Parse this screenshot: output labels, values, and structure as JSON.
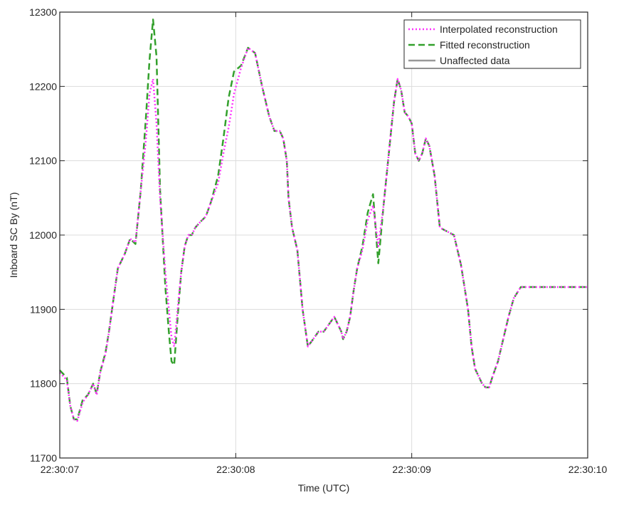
{
  "chart_data": {
    "type": "line",
    "title": "",
    "xlabel": "Time (UTC)",
    "ylabel": "Inboard SC By (nT)",
    "xlim": [
      "22:30:07",
      "22:30:10"
    ],
    "ylim": [
      11700,
      12300
    ],
    "x_ticks": [
      "22:30:07",
      "22:30:08",
      "22:30:09",
      "22:30:10"
    ],
    "y_ticks": [
      11700,
      11800,
      11900,
      12000,
      12100,
      12200,
      12300
    ],
    "grid": true,
    "legend_position": "top-right",
    "series": [
      {
        "name": "Interpolated reconstruction",
        "color": "#ff33ff",
        "style": "dotted",
        "x": [
          0.0,
          0.04,
          0.06,
          0.08,
          0.1,
          0.13,
          0.16,
          0.19,
          0.21,
          0.23,
          0.26,
          0.28,
          0.3,
          0.33,
          0.37,
          0.4,
          0.43,
          0.46,
          0.49,
          0.51,
          0.53,
          0.55,
          0.57,
          0.6,
          0.62,
          0.635,
          0.65,
          0.67,
          0.69,
          0.71,
          0.73,
          0.75,
          0.77,
          0.8,
          0.83,
          0.86,
          0.9,
          0.93,
          0.96,
          0.99,
          1.03,
          1.07,
          1.11,
          1.15,
          1.19,
          1.22,
          1.25,
          1.27,
          1.29,
          1.3,
          1.32,
          1.35,
          1.38,
          1.41,
          1.44,
          1.47,
          1.5,
          1.53,
          1.56,
          1.58,
          1.6,
          1.61,
          1.63,
          1.65,
          1.67,
          1.69,
          1.72,
          1.75,
          1.78,
          1.81,
          1.84,
          1.87,
          1.9,
          1.92,
          1.94,
          1.96,
          1.98,
          2.0,
          2.02,
          2.04,
          2.06,
          2.08,
          2.1,
          2.13,
          2.16,
          2.2,
          2.24,
          2.28,
          2.32,
          2.34,
          2.36,
          2.38,
          2.4,
          2.42,
          2.44,
          2.46,
          2.49,
          2.52,
          2.55,
          2.58,
          2.62,
          2.66,
          2.7,
          2.74,
          2.78,
          2.82,
          2.86,
          2.9,
          2.94,
          3.0
        ],
        "y": [
          11815,
          11805,
          11770,
          11752,
          11750,
          11775,
          11785,
          11800,
          11785,
          11815,
          11840,
          11870,
          11905,
          11955,
          11975,
          11995,
          11990,
          12060,
          12130,
          12190,
          12210,
          12150,
          12050,
          11950,
          11900,
          11862,
          11850,
          11900,
          11950,
          11985,
          12000,
          12000,
          12010,
          12018,
          12025,
          12045,
          12070,
          12110,
          12145,
          12190,
          12225,
          12252,
          12245,
          12200,
          12160,
          12140,
          12140,
          12130,
          12100,
          12050,
          12010,
          11980,
          11900,
          11850,
          11860,
          11870,
          11870,
          11880,
          11890,
          11880,
          11870,
          11860,
          11870,
          11890,
          11925,
          11955,
          11980,
          12020,
          12040,
          11985,
          12040,
          12110,
          12180,
          12210,
          12195,
          12165,
          12160,
          12150,
          12110,
          12100,
          12110,
          12130,
          12120,
          12080,
          12010,
          12005,
          12000,
          11960,
          11900,
          11850,
          11820,
          11810,
          11800,
          11795,
          11795,
          11810,
          11830,
          11860,
          11890,
          11915,
          11930,
          11930,
          11930,
          11930,
          11930,
          11930,
          11930,
          11930,
          11930,
          11930
        ],
        "x_units": "seconds after 22:30:07"
      },
      {
        "name": "Fitted reconstruction",
        "color": "#33a02c",
        "style": "dashed",
        "x": [
          0.0,
          0.04,
          0.06,
          0.08,
          0.1,
          0.13,
          0.16,
          0.19,
          0.21,
          0.23,
          0.26,
          0.28,
          0.3,
          0.33,
          0.37,
          0.4,
          0.43,
          0.46,
          0.49,
          0.51,
          0.53,
          0.55,
          0.57,
          0.6,
          0.62,
          0.635,
          0.65,
          0.67,
          0.69,
          0.71,
          0.73,
          0.75,
          0.77,
          0.8,
          0.83,
          0.86,
          0.9,
          0.93,
          0.96,
          0.99,
          1.03,
          1.07,
          1.11,
          1.15,
          1.19,
          1.22,
          1.25,
          1.27,
          1.29,
          1.3,
          1.32,
          1.35,
          1.38,
          1.41,
          1.44,
          1.47,
          1.5,
          1.53,
          1.56,
          1.58,
          1.6,
          1.61,
          1.63,
          1.65,
          1.67,
          1.69,
          1.72,
          1.75,
          1.78,
          1.81,
          1.84,
          1.87,
          1.9,
          1.92,
          1.94,
          1.96,
          1.98,
          2.0,
          2.02,
          2.04,
          2.06,
          2.08,
          2.1,
          2.13,
          2.16,
          2.2,
          2.24,
          2.28,
          2.32,
          2.34,
          2.36,
          2.38,
          2.4,
          2.42,
          2.44,
          2.46,
          2.49,
          2.52,
          2.55,
          2.58,
          2.62,
          2.66,
          2.7,
          2.74,
          2.78,
          2.82,
          2.86,
          2.9,
          2.94,
          3.0
        ],
        "y": [
          11818,
          11808,
          11770,
          11752,
          11752,
          11778,
          11785,
          11800,
          11786,
          11816,
          11842,
          11871,
          11905,
          11955,
          11975,
          11995,
          11988,
          12060,
          12160,
          12235,
          12290,
          12240,
          12060,
          11930,
          11870,
          11830,
          11825,
          11890,
          11950,
          11985,
          12000,
          12000,
          12010,
          12018,
          12025,
          12045,
          12080,
          12130,
          12185,
          12220,
          12228,
          12252,
          12245,
          12200,
          12160,
          12140,
          12140,
          12130,
          12100,
          12050,
          12010,
          11980,
          11900,
          11850,
          11860,
          11870,
          11870,
          11880,
          11890,
          11880,
          11870,
          11860,
          11870,
          11890,
          11925,
          11955,
          11985,
          12030,
          12055,
          11962,
          12040,
          12110,
          12180,
          12210,
          12195,
          12165,
          12160,
          12150,
          12110,
          12100,
          12110,
          12130,
          12120,
          12080,
          12010,
          12005,
          12000,
          11960,
          11900,
          11850,
          11820,
          11810,
          11800,
          11795,
          11795,
          11810,
          11830,
          11860,
          11890,
          11915,
          11930,
          11930,
          11930,
          11930,
          11930,
          11930,
          11930,
          11930,
          11930,
          11930
        ],
        "x_units": "seconds after 22:30:07"
      },
      {
        "name": "Unaffected data",
        "color": "#999999",
        "style": "solid",
        "x": [],
        "y": []
      }
    ]
  }
}
